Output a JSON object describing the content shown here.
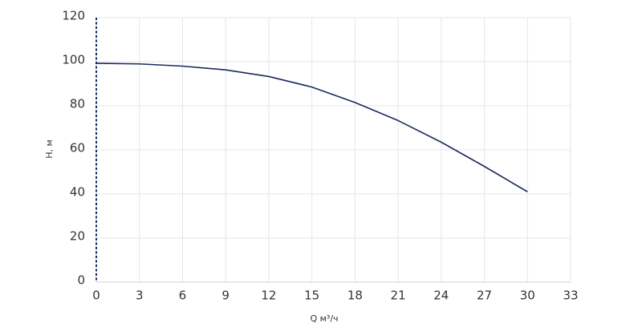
{
  "chart_data": {
    "type": "line",
    "x_label": "Q м³/ч",
    "y_label": "H, м",
    "x": [
      0,
      3,
      6,
      9,
      12,
      15,
      18,
      21,
      24,
      27,
      30
    ],
    "series": [
      {
        "name": "H",
        "color": "#1b2a5c",
        "values": [
          99.3,
          99,
          98,
          96.3,
          93.3,
          88.5,
          81.5,
          73.3,
          63.5,
          52.5,
          41
        ]
      }
    ],
    "xlim": [
      0,
      33
    ],
    "xticks": [
      0,
      3,
      6,
      9,
      12,
      15,
      18,
      21,
      24,
      27,
      30,
      33
    ],
    "ylim": [
      0,
      120
    ],
    "yticks": [
      0,
      20,
      40,
      60,
      80,
      100,
      120
    ],
    "grid": true
  }
}
